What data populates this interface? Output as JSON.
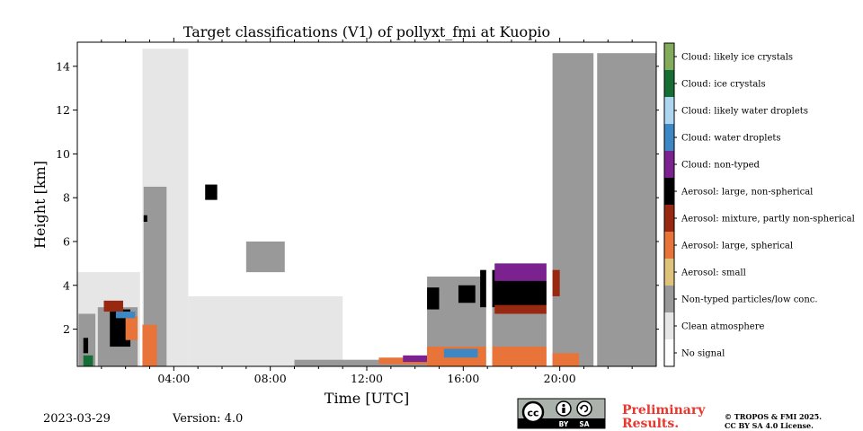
{
  "chart_data": {
    "type": "heatmap",
    "title": "Target classifications (V1) of pollyxt_fmi at Kuopio",
    "xlabel": "Time [UTC]",
    "ylabel": "Height [km]",
    "xlim": [
      0,
      24
    ],
    "ylim": [
      0.3,
      15.1
    ],
    "x_ticks": [
      {
        "x": 4,
        "label": "04:00"
      },
      {
        "x": 8,
        "label": "08:00"
      },
      {
        "x": 12,
        "label": "12:00"
      },
      {
        "x": 16,
        "label": "16:00"
      },
      {
        "x": 20,
        "label": "20:00"
      }
    ],
    "y_ticks": [
      {
        "y": 2,
        "label": "2"
      },
      {
        "y": 4,
        "label": "4"
      },
      {
        "y": 6,
        "label": "6"
      },
      {
        "y": 8,
        "label": "8"
      },
      {
        "y": 10,
        "label": "10"
      },
      {
        "y": 12,
        "label": "12"
      },
      {
        "y": 14,
        "label": "14"
      }
    ],
    "legend_position": "right colorbar",
    "classes": [
      {
        "label": "No signal",
        "color": "#ffffff"
      },
      {
        "label": "Clean atmosphere",
        "color": "#e6e6e6"
      },
      {
        "label": "Non-typed particles/low conc.",
        "color": "#999999"
      },
      {
        "label": "Aerosol: small",
        "color": "#dec47a"
      },
      {
        "label": "Aerosol: large, spherical",
        "color": "#e8743a"
      },
      {
        "label": "Aerosol: mixture, partly non-spherical",
        "color": "#98280f"
      },
      {
        "label": "Aerosol: large, non-spherical",
        "color": "#000000"
      },
      {
        "label": "Cloud: non-typed",
        "color": "#7b2290"
      },
      {
        "label": "Cloud: water droplets",
        "color": "#3d88c4"
      },
      {
        "label": "Cloud: likely water droplets",
        "color": "#aed6f1"
      },
      {
        "label": "Cloud: ice crystals",
        "color": "#176e34"
      },
      {
        "label": "Cloud: likely ice crystals",
        "color": "#82ab5c"
      }
    ],
    "regions": [
      {
        "class": 1,
        "x": [
          0,
          2.6
        ],
        "y": [
          0.3,
          4.6
        ]
      },
      {
        "class": 2,
        "x": [
          0.05,
          0.75
        ],
        "y": [
          0.3,
          2.7
        ]
      },
      {
        "class": 2,
        "x": [
          0.85,
          2.5
        ],
        "y": [
          0.3,
          3.0
        ]
      },
      {
        "class": 6,
        "x": [
          1.35,
          2.2
        ],
        "y": [
          1.2,
          2.9
        ]
      },
      {
        "class": 5,
        "x": [
          1.1,
          1.9
        ],
        "y": [
          2.8,
          3.3
        ]
      },
      {
        "class": 4,
        "x": [
          2.0,
          2.5
        ],
        "y": [
          1.5,
          2.6
        ]
      },
      {
        "class": 8,
        "x": [
          1.6,
          2.4
        ],
        "y": [
          2.5,
          2.8
        ]
      },
      {
        "class": 6,
        "x": [
          0.25,
          0.45
        ],
        "y": [
          0.9,
          1.6
        ]
      },
      {
        "class": 10,
        "x": [
          0.25,
          0.65
        ],
        "y": [
          0.3,
          0.8
        ]
      },
      {
        "class": 1,
        "x": [
          2.7,
          4.6
        ],
        "y": [
          0.3,
          14.8
        ]
      },
      {
        "class": 1,
        "x": [
          4.6,
          11.0
        ],
        "y": [
          0.3,
          3.5
        ]
      },
      {
        "class": 2,
        "x": [
          2.75,
          3.7
        ],
        "y": [
          0.3,
          8.5
        ]
      },
      {
        "class": 4,
        "x": [
          2.7,
          3.3
        ],
        "y": [
          0.3,
          2.2
        ]
      },
      {
        "class": 6,
        "x": [
          2.75,
          2.9
        ],
        "y": [
          6.9,
          7.2
        ]
      },
      {
        "class": 6,
        "x": [
          5.3,
          5.8
        ],
        "y": [
          7.9,
          8.6
        ]
      },
      {
        "class": 2,
        "x": [
          7.0,
          8.6
        ],
        "y": [
          4.6,
          6.0
        ]
      },
      {
        "class": 2,
        "x": [
          9.0,
          14.5
        ],
        "y": [
          0.3,
          0.6
        ]
      },
      {
        "class": 4,
        "x": [
          12.5,
          14.5
        ],
        "y": [
          0.4,
          0.7
        ]
      },
      {
        "class": 7,
        "x": [
          13.5,
          14.5
        ],
        "y": [
          0.5,
          0.8
        ]
      },
      {
        "class": 2,
        "x": [
          14.5,
          19.5
        ],
        "y": [
          0.3,
          4.4
        ]
      },
      {
        "class": 6,
        "x": [
          14.5,
          15.0
        ],
        "y": [
          2.9,
          3.9
        ]
      },
      {
        "class": 6,
        "x": [
          15.8,
          16.5
        ],
        "y": [
          3.2,
          4.0
        ]
      },
      {
        "class": 6,
        "x": [
          16.7,
          19.5
        ],
        "y": [
          3.0,
          4.7
        ]
      },
      {
        "class": 7,
        "x": [
          17.3,
          19.6
        ],
        "y": [
          4.2,
          5.0
        ]
      },
      {
        "class": 5,
        "x": [
          17.3,
          19.5
        ],
        "y": [
          2.7,
          3.1
        ]
      },
      {
        "class": 4,
        "x": [
          14.5,
          19.5
        ],
        "y": [
          0.3,
          1.2
        ]
      },
      {
        "class": 8,
        "x": [
          15.2,
          16.6
        ],
        "y": [
          0.7,
          1.1
        ]
      },
      {
        "class": 2,
        "x": [
          19.7,
          24.0
        ],
        "y": [
          0.3,
          14.6
        ]
      },
      {
        "class": 5,
        "x": [
          19.7,
          20.0
        ],
        "y": [
          3.5,
          4.7
        ]
      },
      {
        "class": 4,
        "x": [
          19.7,
          20.8
        ],
        "y": [
          0.3,
          0.9
        ]
      },
      {
        "class": 0,
        "x": [
          21.4,
          21.55
        ],
        "y": [
          0.3,
          15.1
        ]
      },
      {
        "class": 0,
        "x": [
          16.95,
          17.2
        ],
        "y": [
          0.3,
          15.1
        ]
      },
      {
        "class": 0,
        "x": [
          19.45,
          19.65
        ],
        "y": [
          0.3,
          15.1
        ]
      }
    ]
  },
  "footer": {
    "date": "2023-03-29",
    "version": "Version: 4.0",
    "license_badge": {
      "cc": "cc",
      "by": "BY",
      "sa": "SA"
    },
    "preliminary_line1": "Preliminary",
    "preliminary_line2": "Results.",
    "copyright_line1": "© TROPOS & FMI 2025.",
    "copyright_line2": "CC BY SA 4.0 License."
  }
}
